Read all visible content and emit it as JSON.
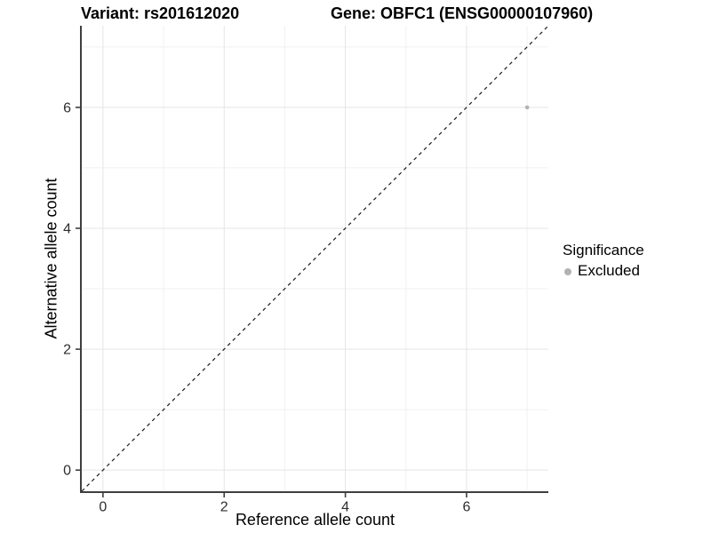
{
  "titles": {
    "variant": "Variant: rs201612020",
    "gene": "Gene: OBFC1 (ENSG00000107960)"
  },
  "legend": {
    "title": "Significance",
    "items": [
      {
        "label": "Excluded",
        "color": "#b2b2b2"
      }
    ]
  },
  "chart_data": {
    "type": "scatter",
    "xlabel": "Reference allele count",
    "ylabel": "Alternative allele count",
    "xlim": [
      -0.35,
      7.35
    ],
    "ylim": [
      -0.35,
      7.35
    ],
    "xticks": [
      0,
      2,
      4,
      6
    ],
    "yticks": [
      0,
      2,
      4,
      6
    ],
    "minor_gridlines": [
      1,
      3,
      5,
      7
    ],
    "grid": true,
    "legend_position": "right",
    "series": [
      {
        "name": "Excluded",
        "color": "#b2b2b2",
        "points": [
          {
            "x": 7,
            "y": 6
          }
        ]
      }
    ],
    "reference_line": {
      "type": "identity y=x",
      "from": [
        -0.35,
        -0.35
      ],
      "to": [
        7.35,
        7.35
      ],
      "style": "dashed",
      "color": "#1a1a1a"
    }
  },
  "style": {
    "grid_major_color": "#e5e5e5",
    "grid_minor_color": "#f1f1f1",
    "axis_line_color": "#3f3f3f",
    "tick_color": "#3f3f3f",
    "tick_label_color": "#2e2e2e"
  }
}
